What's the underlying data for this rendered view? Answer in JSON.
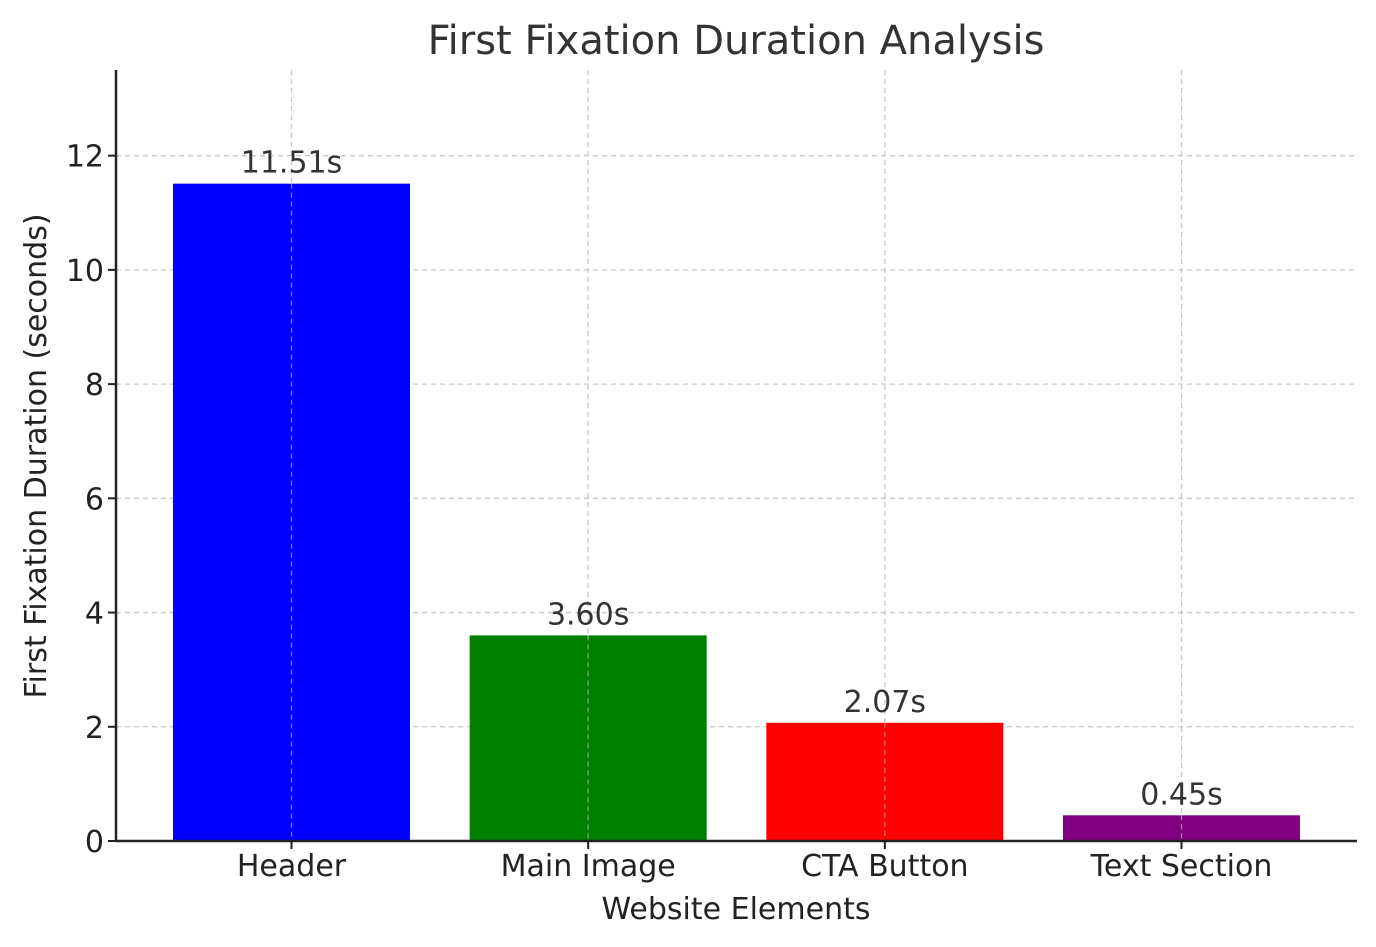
{
  "chart_data": {
    "type": "bar",
    "title": "First Fixation Duration Analysis",
    "xlabel": "Website Elements",
    "ylabel": "First Fixation Duration (seconds)",
    "categories": [
      "Header",
      "Main Image",
      "CTA Button",
      "Text Section"
    ],
    "values": [
      11.51,
      3.6,
      2.07,
      0.45
    ],
    "data_labels": [
      "11.51s",
      "3.60s",
      "2.07s",
      "0.45s"
    ],
    "colors": [
      "#0000ff",
      "#008000",
      "#ff0000",
      "#800080"
    ],
    "ylim": [
      0,
      13.5
    ],
    "yticks": [
      0,
      2,
      4,
      6,
      8,
      10,
      12
    ],
    "grid": true
  }
}
